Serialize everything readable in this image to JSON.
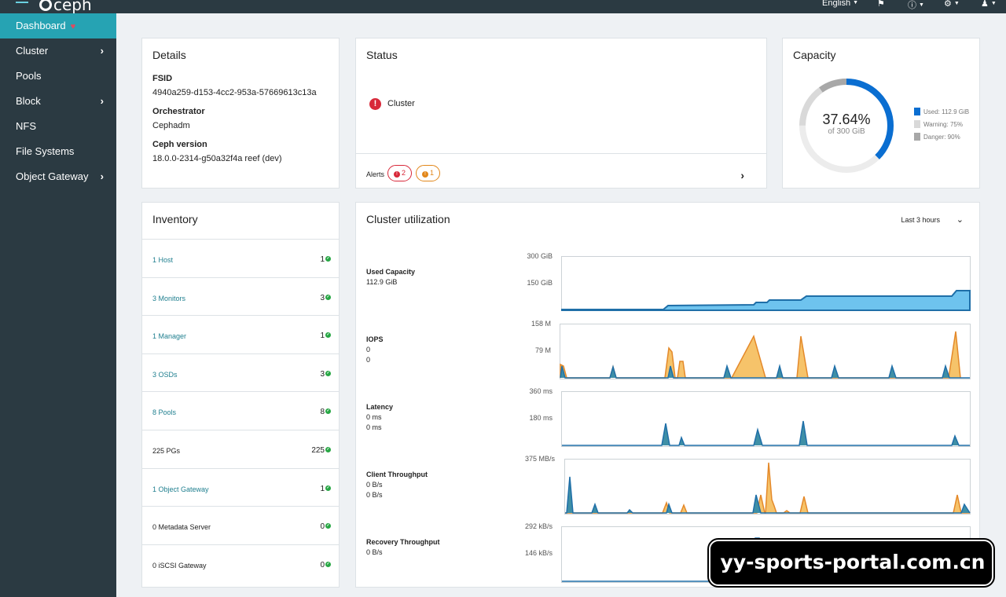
{
  "topbar": {
    "brand": "ceph",
    "language": "English",
    "notifications_icon": "bell-icon",
    "help_icon": "help-icon",
    "settings_icon": "gear-icon",
    "user_icon": "user-icon"
  },
  "sidebar": {
    "items": [
      {
        "label": "Dashboard",
        "active": true
      },
      {
        "label": "Cluster",
        "expandable": true
      },
      {
        "label": "Pools"
      },
      {
        "label": "Block",
        "expandable": true
      },
      {
        "label": "NFS"
      },
      {
        "label": "File Systems"
      },
      {
        "label": "Object Gateway",
        "expandable": true
      }
    ]
  },
  "details": {
    "title": "Details",
    "fsid_label": "FSID",
    "fsid": "4940a259-d153-4cc2-953a-57669613c13a",
    "orchestrator_label": "Orchestrator",
    "orchestrator": "Cephadm",
    "version_label": "Ceph version",
    "version": "18.0.0-2314-g50a32f4a reef (dev)"
  },
  "status": {
    "title": "Status",
    "cluster_label": "Cluster",
    "alerts_label": "Alerts",
    "alerts_critical": "2",
    "alerts_warning": "1"
  },
  "capacity": {
    "title": "Capacity",
    "percent": "37.64%",
    "of_total": "of 300 GiB",
    "used_fraction": 0.3764,
    "legend_used": "Used: 112.9 GiB",
    "legend_warning": "Warning: 75%",
    "legend_danger": "Danger: 90%",
    "colors": {
      "used": "#0a6ed1",
      "warning": "#d9d9d9",
      "danger": "#a8a8a8",
      "track": "#ececec"
    }
  },
  "inventory": {
    "title": "Inventory",
    "rows": [
      {
        "label": "1 Host",
        "count": "1",
        "link": true
      },
      {
        "label": "3 Monitors",
        "count": "3",
        "link": true
      },
      {
        "label": "1 Manager",
        "count": "1",
        "link": true
      },
      {
        "label": "3 OSDs",
        "count": "3",
        "link": true
      },
      {
        "label": "8 Pools",
        "count": "8",
        "link": true
      },
      {
        "label": "225 PGs",
        "count": "225",
        "link": false
      },
      {
        "label": "1 Object Gateway",
        "count": "1",
        "link": true
      },
      {
        "label": "0 Metadata Server",
        "count": "0",
        "link": false
      },
      {
        "label": "0 iSCSI Gateway",
        "count": "0",
        "link": false
      }
    ]
  },
  "utilization": {
    "title": "Cluster utilization",
    "range": "Last 3 hours",
    "metrics": [
      {
        "name": "Used Capacity",
        "values": [
          "112.9 GiB"
        ],
        "tick_top": "300 GiB",
        "tick_mid": "150 GiB"
      },
      {
        "name": "IOPS",
        "values": [
          "0",
          "0"
        ],
        "tick_top": "158 M",
        "tick_mid": "79 M"
      },
      {
        "name": "Latency",
        "values": [
          "0 ms",
          "0 ms"
        ],
        "tick_top": "360 ms",
        "tick_mid": "180 ms"
      },
      {
        "name": "Client Throughput",
        "values": [
          "0 B/s",
          "0 B/s"
        ],
        "tick_top": "375 MB/s",
        "tick_mid": ""
      },
      {
        "name": "Recovery Throughput",
        "values": [
          "0 B/s"
        ],
        "tick_top": "292 kB/s",
        "tick_mid": "146 kB/s"
      }
    ],
    "colors": {
      "blue": "#1f6fa8",
      "blue_fill": "#6ec3ee",
      "orange": "#e4892a",
      "orange_fill": "#f6c36a",
      "teal_fill": "#3f8fa6"
    }
  },
  "watermark": {
    "text": "yy-sports-portal.com.cn"
  }
}
